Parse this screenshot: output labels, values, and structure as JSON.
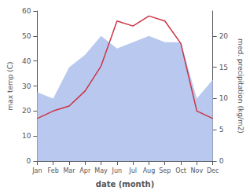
{
  "chart_data": {
    "type": "line",
    "xlabel": "date (month)",
    "ylabel": "max temp (C)",
    "y2label": "med. precipitation (kg/m2)",
    "categories": [
      "Jan",
      "Feb",
      "Mar",
      "Apr",
      "May",
      "Jun",
      "Jul",
      "Aug",
      "Sep",
      "Oct",
      "Nov",
      "Dec"
    ],
    "series": [
      {
        "type": "area",
        "axis": "y2",
        "color": "#b8c8ee",
        "values": [
          11,
          10,
          15,
          17,
          20,
          18,
          19,
          20,
          19,
          19,
          10,
          13
        ]
      },
      {
        "type": "line",
        "color": "#cc3344",
        "values": [
          17,
          20,
          22,
          28,
          38,
          56,
          54,
          58,
          56,
          47,
          20,
          17
        ]
      }
    ],
    "ylim": [
      0,
      60
    ],
    "yticks": [
      0,
      10,
      20,
      30,
      40,
      50,
      60
    ],
    "y2lim": [
      0,
      24
    ],
    "y2ticks": [
      0,
      5,
      10,
      15,
      20
    ],
    "grid": false
  }
}
